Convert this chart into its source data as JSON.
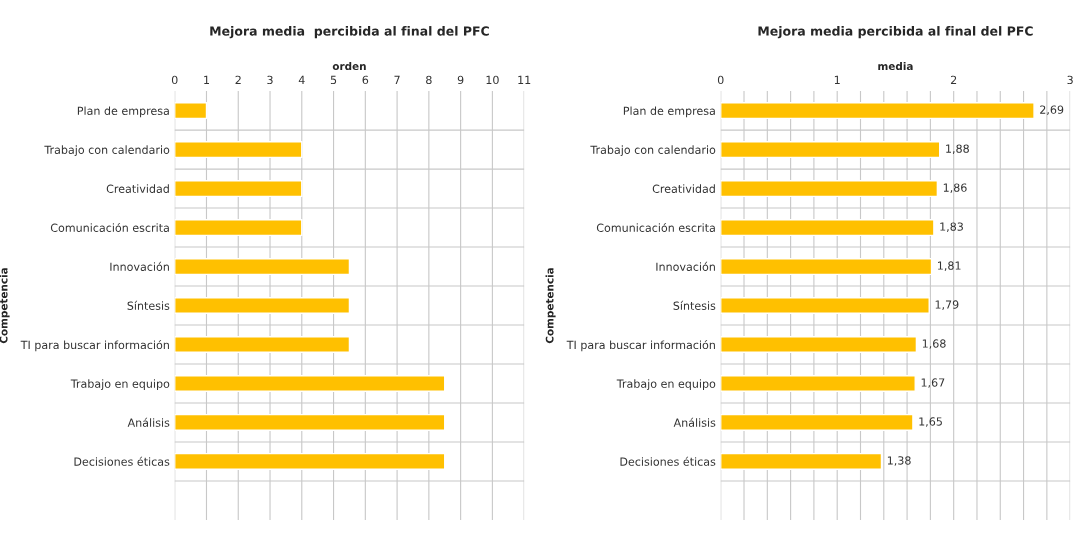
{
  "chart_data": [
    {
      "type": "bar",
      "orientation": "horizontal",
      "title": "Mejora media  percibida al final del PFC",
      "xlabel": "orden",
      "ylabel": "Competencia",
      "categories": [
        "Plan de empresa",
        "Trabajo con calendario",
        "Creatividad",
        "Comunicación escrita",
        "Innovación",
        "Síntesis",
        "TI para buscar información",
        "Trabajo en equipo",
        "Análisis",
        "Decisiones éticas",
        null
      ],
      "values": [
        1,
        4,
        4,
        4,
        5.5,
        5.5,
        5.5,
        8.5,
        8.5,
        8.5,
        null
      ],
      "color": "#ffc000",
      "xlim": [
        0,
        11
      ],
      "xticks": [
        0,
        1,
        2,
        3,
        4,
        5,
        6,
        7,
        8,
        9,
        10,
        11
      ],
      "grid": true,
      "legend": false
    },
    {
      "type": "bar",
      "orientation": "horizontal",
      "title": "Mejora media percibida al final del PFC",
      "xlabel": "media",
      "ylabel": "Competencia",
      "categories": [
        "Plan de empresa",
        "Trabajo con calendario",
        "Creatividad",
        "Comunicación escrita",
        "Innovación",
        "Síntesis",
        "TI para buscar información",
        "Trabajo en equipo",
        "Análisis",
        "Decisiones éticas",
        null
      ],
      "values": [
        2.69,
        1.88,
        1.86,
        1.83,
        1.81,
        1.79,
        1.68,
        1.67,
        1.65,
        1.38,
        null
      ],
      "color": "#ffc000",
      "value_labels": [
        "2,69",
        "1,88",
        "1,86",
        "1,83",
        "1,81",
        "1,79",
        "1,68",
        "1,67",
        "1,65",
        "1,38",
        null
      ],
      "xlim": [
        0,
        3
      ],
      "xticks": [
        0,
        {
          "value": 0.2,
          "label": null
        },
        {
          "value": 0.4,
          "label": null
        },
        {
          "value": 0.6,
          "label": null
        },
        {
          "value": 0.8,
          "label": null
        },
        1,
        {
          "value": 1.2,
          "label": null
        },
        {
          "value": 1.4,
          "label": null
        },
        {
          "value": 1.6,
          "label": null
        },
        {
          "value": 1.8,
          "label": null
        },
        2,
        {
          "value": 2.2,
          "label": null
        },
        {
          "value": 2.4,
          "label": null
        },
        {
          "value": 2.6,
          "label": null
        },
        {
          "value": 2.8,
          "label": null
        },
        3
      ],
      "grid": true,
      "legend": false
    }
  ]
}
